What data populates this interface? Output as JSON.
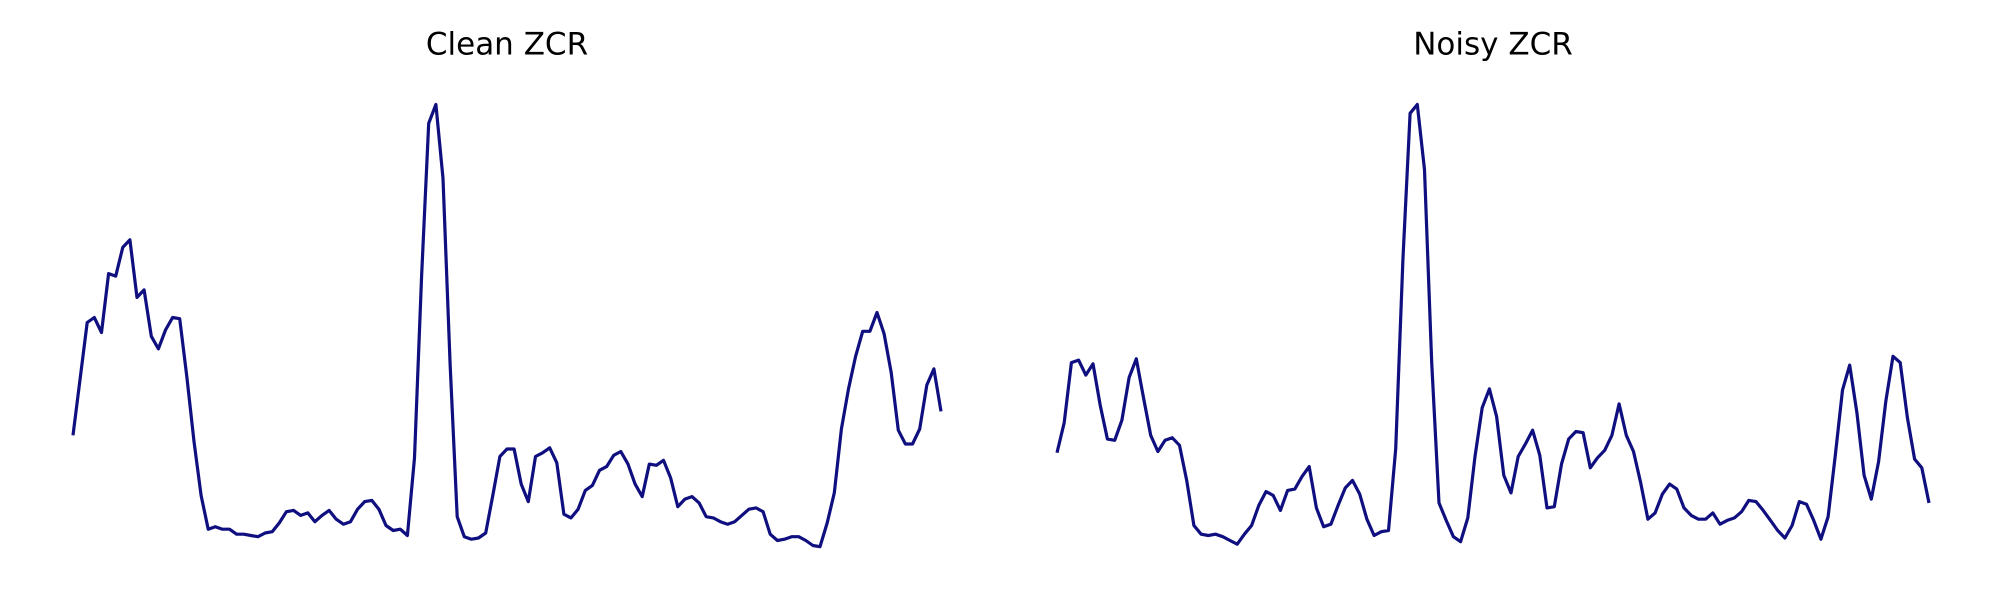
{
  "chart_data": [
    {
      "type": "line",
      "title": "Clean ZCR",
      "color": "#0f0f80",
      "ylim": [
        0,
        360
      ],
      "values": [
        90,
        135,
        180,
        184,
        172,
        219,
        217,
        240,
        246,
        200,
        206,
        169,
        159,
        174,
        184,
        183,
        137,
        85,
        42,
        15,
        17,
        15,
        15,
        11,
        11,
        10,
        9,
        12,
        13,
        20,
        29,
        30,
        26,
        28,
        21,
        26,
        30,
        23,
        19,
        21,
        31,
        37,
        38,
        31,
        18,
        14,
        15,
        10,
        72,
        217,
        339,
        354,
        295,
        147,
        25,
        9,
        7,
        8,
        12,
        42,
        73,
        79,
        79,
        51,
        37,
        73,
        76,
        80,
        68,
        27,
        24,
        31,
        46,
        50,
        62,
        65,
        74,
        77,
        67,
        51,
        41,
        67,
        66,
        70,
        56,
        33,
        39,
        41,
        36,
        25,
        24,
        21,
        19,
        21,
        26,
        31,
        32,
        29,
        11,
        6,
        7,
        9,
        9,
        6,
        2,
        1,
        20,
        44,
        95,
        127,
        153,
        173,
        173,
        188,
        171,
        140,
        94,
        83,
        83,
        95,
        130,
        143,
        109
      ]
    },
    {
      "type": "line",
      "title": "Noisy ZCR",
      "color": "#0f0f80",
      "ylim": [
        0,
        360
      ],
      "values": [
        76,
        100,
        148,
        150,
        138,
        147,
        114,
        87,
        86,
        102,
        136,
        151,
        120,
        90,
        77,
        86,
        88,
        82,
        54,
        18,
        11,
        10,
        11,
        9,
        6,
        3,
        11,
        18,
        34,
        45,
        42,
        30,
        46,
        47,
        57,
        65,
        32,
        17,
        19,
        34,
        48,
        54,
        43,
        23,
        10,
        13,
        14,
        79,
        230,
        347,
        354,
        302,
        148,
        36,
        22,
        9,
        5,
        24,
        73,
        112,
        127,
        105,
        58,
        44,
        73,
        83,
        94,
        74,
        32,
        33,
        67,
        87,
        93,
        92,
        64,
        72,
        78,
        90,
        115,
        90,
        77,
        52,
        23,
        28,
        43,
        51,
        47,
        32,
        26,
        23,
        23,
        28,
        19,
        22,
        24,
        29,
        38,
        37,
        30,
        22,
        14,
        8,
        18,
        37,
        35,
        22,
        7,
        25,
        74,
        126,
        146,
        108,
        58,
        39,
        69,
        117,
        153,
        148,
        104,
        71,
        64,
        36
      ]
    }
  ]
}
